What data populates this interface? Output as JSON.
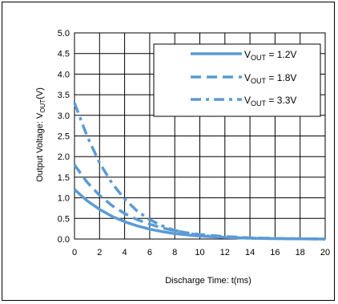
{
  "chart_data": {
    "type": "line",
    "title": "",
    "xlabel": "Discharge Time: t(ms)",
    "ylabel_main": "Output Voltage: V",
    "ylabel_sub": "OUT",
    "ylabel_unit": "(V)",
    "xlim": [
      0,
      20
    ],
    "ylim": [
      0,
      5
    ],
    "xticks": [
      "0",
      "2",
      "4",
      "6",
      "8",
      "10",
      "12",
      "14",
      "16",
      "18",
      "20"
    ],
    "yticks": [
      "0.0",
      "0.5",
      "1.0",
      "1.5",
      "2.0",
      "2.5",
      "3.0",
      "3.5",
      "4.0",
      "4.5",
      "5.0"
    ],
    "grid": true,
    "legend_position": "top-right",
    "line_color": "#5b9bd5",
    "series": [
      {
        "name_main": "V",
        "name_sub": "OUT",
        "name_value": " = 1.2V",
        "style": "solid",
        "x": [
          0,
          1,
          2,
          3,
          4,
          5,
          6,
          7,
          8,
          9,
          10,
          12,
          14,
          16,
          18,
          20
        ],
        "y": [
          1.2,
          0.93,
          0.72,
          0.55,
          0.42,
          0.32,
          0.24,
          0.18,
          0.13,
          0.1,
          0.07,
          0.04,
          0.02,
          0.01,
          0.005,
          0.0
        ]
      },
      {
        "name_main": "V",
        "name_sub": "OUT",
        "name_value": " = 1.8V",
        "style": "dash",
        "x": [
          0,
          1,
          2,
          3,
          4,
          5,
          6,
          7,
          8,
          9,
          10,
          12,
          14,
          16,
          18,
          20
        ],
        "y": [
          1.8,
          1.38,
          1.06,
          0.81,
          0.62,
          0.47,
          0.36,
          0.27,
          0.2,
          0.15,
          0.11,
          0.06,
          0.03,
          0.015,
          0.008,
          0.0
        ]
      },
      {
        "name_main": "V",
        "name_sub": "OUT",
        "name_value": " = 3.3V",
        "style": "dashdot",
        "x": [
          0,
          1,
          2,
          3,
          4,
          5,
          6,
          7,
          8,
          9,
          10,
          12,
          14,
          16,
          18,
          20
        ],
        "y": [
          3.3,
          2.5,
          1.85,
          1.35,
          0.97,
          0.68,
          0.47,
          0.32,
          0.21,
          0.14,
          0.09,
          0.04,
          0.02,
          0.01,
          0.005,
          0.0
        ]
      }
    ]
  }
}
